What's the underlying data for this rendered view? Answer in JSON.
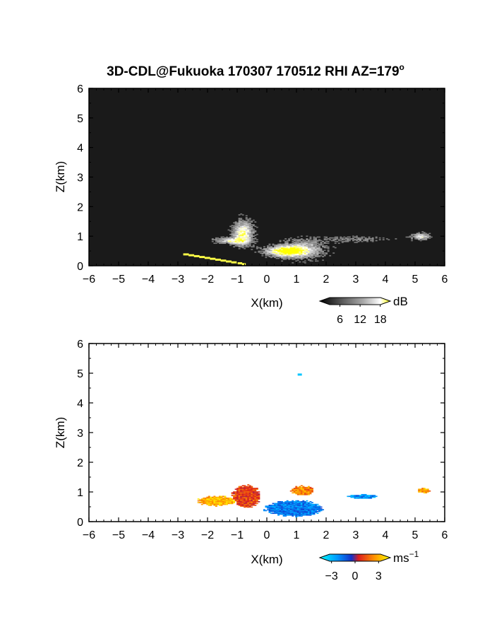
{
  "figure": {
    "title": "3D-CDL@Fukuoka 170307 170512 RHI AZ=179",
    "title_sup": "o"
  },
  "chart_data": [
    {
      "type": "heatmap",
      "panel": "top",
      "quantity": "backscatter intensity",
      "xlabel": "X(km)",
      "ylabel": "Z(km)",
      "xlim": [
        -6,
        6
      ],
      "ylim": [
        0,
        6
      ],
      "xticks": [
        -6,
        -5,
        -4,
        -3,
        -2,
        -1,
        0,
        1,
        2,
        3,
        4,
        5,
        6
      ],
      "yticks": [
        0,
        1,
        2,
        3,
        4,
        5,
        6
      ],
      "grid": false,
      "background": "#1a1a1a",
      "colorbar": {
        "unit": "dB",
        "ticks": [
          6,
          12,
          18
        ],
        "range": [
          0,
          21
        ],
        "colors": [
          "#000000",
          "#555555",
          "#aaaaaa",
          "#ffffff",
          "#ffff00"
        ]
      },
      "features": [
        {
          "x": 0.6,
          "z": 0.5,
          "sx": 0.6,
          "sz": 0.16,
          "intensity": 0.85
        },
        {
          "x": -0.8,
          "z": 1.1,
          "sx": 0.3,
          "sz": 0.4,
          "intensity": 0.75
        },
        {
          "x": -1.2,
          "z": 0.85,
          "sx": 0.5,
          "sz": 0.1,
          "intensity": 0.55
        },
        {
          "x": 1.2,
          "z": 0.55,
          "sx": 0.7,
          "sz": 0.3,
          "intensity": 0.5
        },
        {
          "x": 5.2,
          "z": 1.0,
          "sx": 0.3,
          "sz": 0.1,
          "intensity": 0.55
        },
        {
          "x": 3.0,
          "z": 0.9,
          "sx": 1.2,
          "sz": 0.1,
          "intensity": 0.2
        }
      ],
      "trail": {
        "x": [
          -2.8,
          -0.7
        ],
        "z": [
          0.4,
          0.05
        ]
      }
    },
    {
      "type": "heatmap",
      "panel": "bottom",
      "quantity": "radial velocity",
      "xlabel": "X(km)",
      "ylabel": "Z(km)",
      "xlim": [
        -6,
        6
      ],
      "ylim": [
        0,
        6
      ],
      "xticks": [
        -6,
        -5,
        -4,
        -3,
        -2,
        -1,
        0,
        1,
        2,
        3,
        4,
        5,
        6
      ],
      "yticks": [
        0,
        1,
        2,
        3,
        4,
        5,
        6
      ],
      "grid": false,
      "background": "#ffffff",
      "colorbar": {
        "unit": "ms",
        "unit_sup": "−1",
        "ticks": [
          -3,
          0,
          3
        ],
        "tick_labels": [
          "−3",
          "0",
          "3"
        ],
        "range": [
          -4.5,
          4.5
        ],
        "colors": [
          "#00ffff",
          "#0096ff",
          "#1432c8",
          "#dc1e1e",
          "#ff9600",
          "#ffff00"
        ]
      },
      "features": [
        {
          "x": 0.9,
          "z": 0.45,
          "sx": 0.9,
          "sz": 0.25,
          "v": -2.2
        },
        {
          "x": -0.7,
          "z": 0.85,
          "sx": 0.45,
          "sz": 0.35,
          "v": 1.5
        },
        {
          "x": -1.7,
          "z": 0.7,
          "sx": 0.6,
          "sz": 0.15,
          "v": 3.2
        },
        {
          "x": 1.2,
          "z": 1.05,
          "sx": 0.35,
          "sz": 0.15,
          "v": 2.5
        },
        {
          "x": 5.3,
          "z": 1.05,
          "sx": 0.2,
          "sz": 0.08,
          "v": 2.8
        },
        {
          "x": 3.2,
          "z": 0.85,
          "sx": 0.5,
          "sz": 0.07,
          "v": -2.5
        }
      ],
      "isolated_cells": [
        {
          "x": 1.1,
          "z": 4.97,
          "v": -3.5
        }
      ]
    }
  ]
}
